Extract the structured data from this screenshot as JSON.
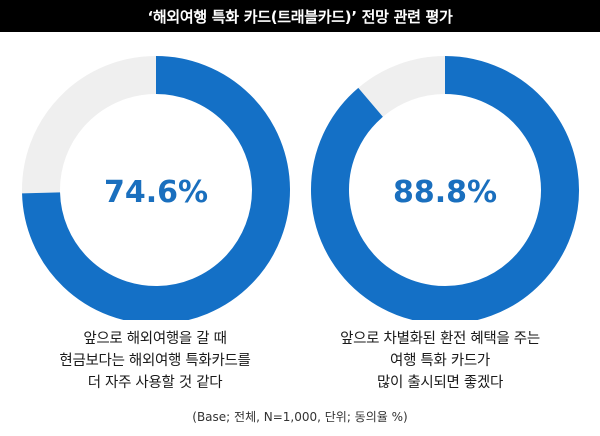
{
  "title": "‘해외여행 특화 카드(트래블카드)’ 전망 관련 평가",
  "chart_data": [
    {
      "type": "pie",
      "variant": "donut",
      "value_label": "74.6%",
      "values": [
        74.6,
        25.4
      ],
      "caption_lines": [
        "앞으로 해외여행을 갈 때",
        "현금보다는 해외여행 특화카드를",
        "더 자주 사용할 것 같다"
      ]
    },
    {
      "type": "pie",
      "variant": "donut",
      "value_label": "88.8%",
      "values": [
        88.8,
        11.2
      ],
      "caption_lines": [
        "앞으로 차별화된 환전 혜택을 주는",
        "여행 특화 카드가",
        "많이 출시되면 좋겠다"
      ]
    }
  ],
  "footnote": "(Base; 전체, N=1,000, 단위; 동의율 %)",
  "colors": {
    "accent": "#1470c6",
    "remainder": "#efefef",
    "label": "#1a6fbe",
    "title_bg": "#000000",
    "title_text": "#ffffff"
  }
}
